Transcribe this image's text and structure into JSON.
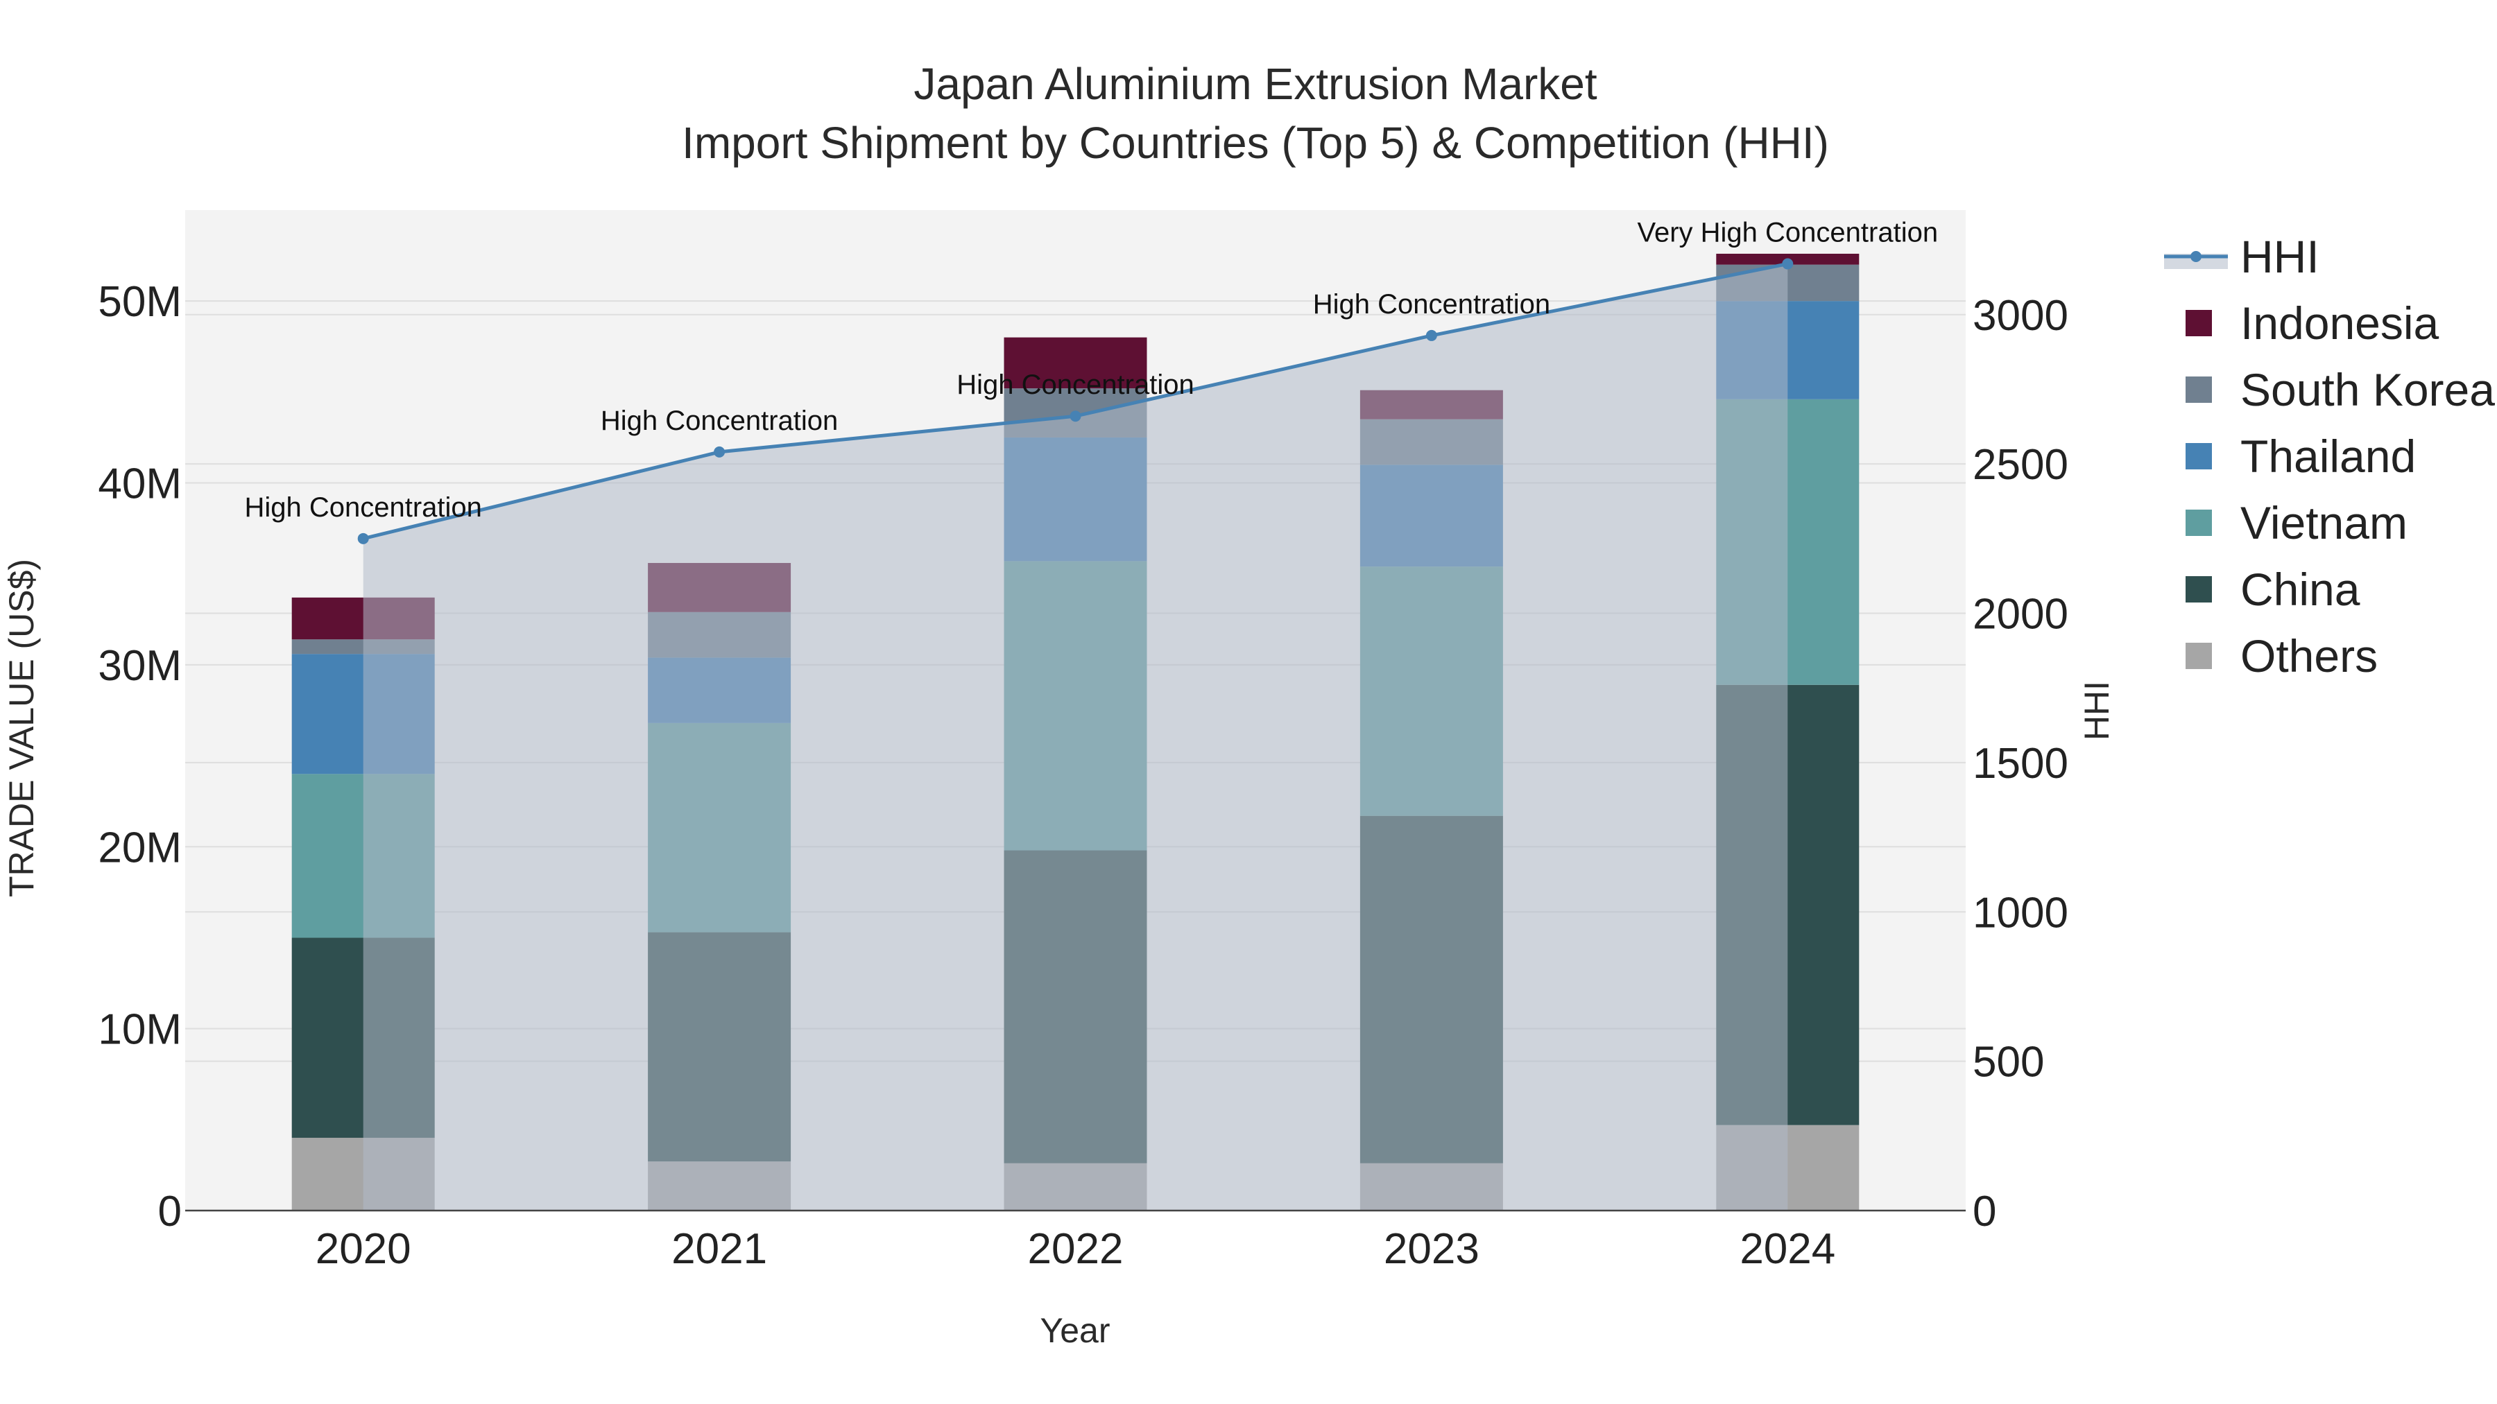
{
  "chart_data": {
    "type": "bar",
    "title_line1": "Japan Aluminium Extrusion Market",
    "title_line2": "Import Shipment by Countries (Top 5) & Competition (HHI)",
    "xlabel": "Year",
    "ylabel": "TRADE VALUE (US$)",
    "y2label": "HHI",
    "categories": [
      "2020",
      "2021",
      "2022",
      "2023",
      "2024"
    ],
    "ylim": [
      0,
      55000000
    ],
    "y_ticks": [
      {
        "value": 0,
        "label": "0"
      },
      {
        "value": 10000000,
        "label": "10M"
      },
      {
        "value": 20000000,
        "label": "20M"
      },
      {
        "value": 30000000,
        "label": "30M"
      },
      {
        "value": 40000000,
        "label": "40M"
      },
      {
        "value": 50000000,
        "label": "50M"
      }
    ],
    "y2lim": [
      0,
      3350
    ],
    "y2_ticks": [
      {
        "value": 0,
        "label": "0"
      },
      {
        "value": 500,
        "label": "500"
      },
      {
        "value": 1000,
        "label": "1000"
      },
      {
        "value": 1500,
        "label": "1500"
      },
      {
        "value": 2000,
        "label": "2000"
      },
      {
        "value": 2500,
        "label": "2500"
      },
      {
        "value": 3000,
        "label": "3000"
      }
    ],
    "series": [
      {
        "name": "Others",
        "color": "#a6a6a6",
        "values": [
          4000000,
          2700000,
          2600000,
          2600000,
          4700000
        ]
      },
      {
        "name": "China",
        "color": "#2f4f4f",
        "values": [
          11000000,
          12600000,
          17200000,
          19100000,
          24200000
        ]
      },
      {
        "name": "Vietnam",
        "color": "#5f9ea0",
        "values": [
          9000000,
          11500000,
          15900000,
          13700000,
          15700000
        ]
      },
      {
        "name": "Thailand",
        "color": "#4682b4",
        "values": [
          6600000,
          3600000,
          6800000,
          5600000,
          5400000
        ]
      },
      {
        "name": "South Korea",
        "color": "#708090",
        "values": [
          800000,
          2500000,
          2700000,
          2500000,
          2000000
        ]
      },
      {
        "name": "Indonesia",
        "color": "#5e1033",
        "values": [
          2300000,
          2700000,
          2800000,
          1600000,
          600000
        ]
      }
    ],
    "hhi": {
      "name": "HHI",
      "color": "#4682b4",
      "values": [
        2250,
        2540,
        2660,
        2930,
        3170
      ],
      "labels": [
        "High Concentration",
        "High Concentration",
        "High Concentration",
        "High Concentration",
        "Very High Concentration"
      ]
    },
    "legend_order": [
      "HHI",
      "Indonesia",
      "South Korea",
      "Thailand",
      "Vietnam",
      "China",
      "Others"
    ],
    "legend_position": "top-right, outside plot"
  }
}
